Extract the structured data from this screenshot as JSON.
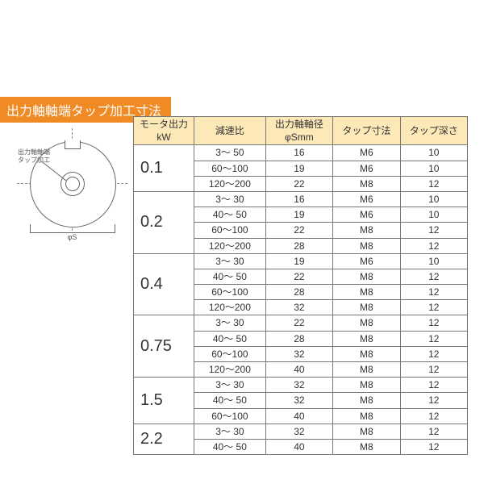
{
  "colors": {
    "title_bg": "#f08a24",
    "title_fg": "#ffffff",
    "header_bg": "#fde8b7",
    "header_fg": "#333333",
    "border": "#777777"
  },
  "title": "出力軸軸端タップ加工寸法",
  "diagram": {
    "caption_line1": "出力軸軸端",
    "caption_line2": "タップ加工",
    "dim_label": "φS"
  },
  "table": {
    "headers": {
      "kw": "モータ出力\nkW",
      "ratio": "減速比",
      "dia": "出力軸軸径\nφSmm",
      "tap": "タップ寸法",
      "depth": "タップ深さ"
    },
    "groups": [
      {
        "kw": "0.1",
        "rows": [
          {
            "ratio": "3～ 50",
            "dia": "16",
            "tap": "M6",
            "depth": "10"
          },
          {
            "ratio": "60～100",
            "dia": "19",
            "tap": "M6",
            "depth": "10"
          },
          {
            "ratio": "120～200",
            "dia": "22",
            "tap": "M8",
            "depth": "12"
          }
        ]
      },
      {
        "kw": "0.2",
        "rows": [
          {
            "ratio": "3～ 30",
            "dia": "16",
            "tap": "M6",
            "depth": "10"
          },
          {
            "ratio": "40～ 50",
            "dia": "19",
            "tap": "M6",
            "depth": "10"
          },
          {
            "ratio": "60～100",
            "dia": "22",
            "tap": "M8",
            "depth": "12"
          },
          {
            "ratio": "120～200",
            "dia": "28",
            "tap": "M8",
            "depth": "12"
          }
        ]
      },
      {
        "kw": "0.4",
        "rows": [
          {
            "ratio": "3～ 30",
            "dia": "19",
            "tap": "M6",
            "depth": "10"
          },
          {
            "ratio": "40～ 50",
            "dia": "22",
            "tap": "M8",
            "depth": "12"
          },
          {
            "ratio": "60～100",
            "dia": "28",
            "tap": "M8",
            "depth": "12"
          },
          {
            "ratio": "120～200",
            "dia": "32",
            "tap": "M8",
            "depth": "12"
          }
        ]
      },
      {
        "kw": "0.75",
        "rows": [
          {
            "ratio": "3～ 30",
            "dia": "22",
            "tap": "M8",
            "depth": "12"
          },
          {
            "ratio": "40～ 50",
            "dia": "28",
            "tap": "M8",
            "depth": "12"
          },
          {
            "ratio": "60～100",
            "dia": "32",
            "tap": "M8",
            "depth": "12"
          },
          {
            "ratio": "120～200",
            "dia": "40",
            "tap": "M8",
            "depth": "12"
          }
        ]
      },
      {
        "kw": "1.5",
        "rows": [
          {
            "ratio": "3～ 30",
            "dia": "32",
            "tap": "M8",
            "depth": "12"
          },
          {
            "ratio": "40～ 50",
            "dia": "32",
            "tap": "M8",
            "depth": "12"
          },
          {
            "ratio": "60～100",
            "dia": "40",
            "tap": "M8",
            "depth": "12"
          }
        ]
      },
      {
        "kw": "2.2",
        "rows": [
          {
            "ratio": "3～ 30",
            "dia": "32",
            "tap": "M8",
            "depth": "12"
          },
          {
            "ratio": "40～ 50",
            "dia": "40",
            "tap": "M8",
            "depth": "12"
          }
        ]
      }
    ]
  }
}
